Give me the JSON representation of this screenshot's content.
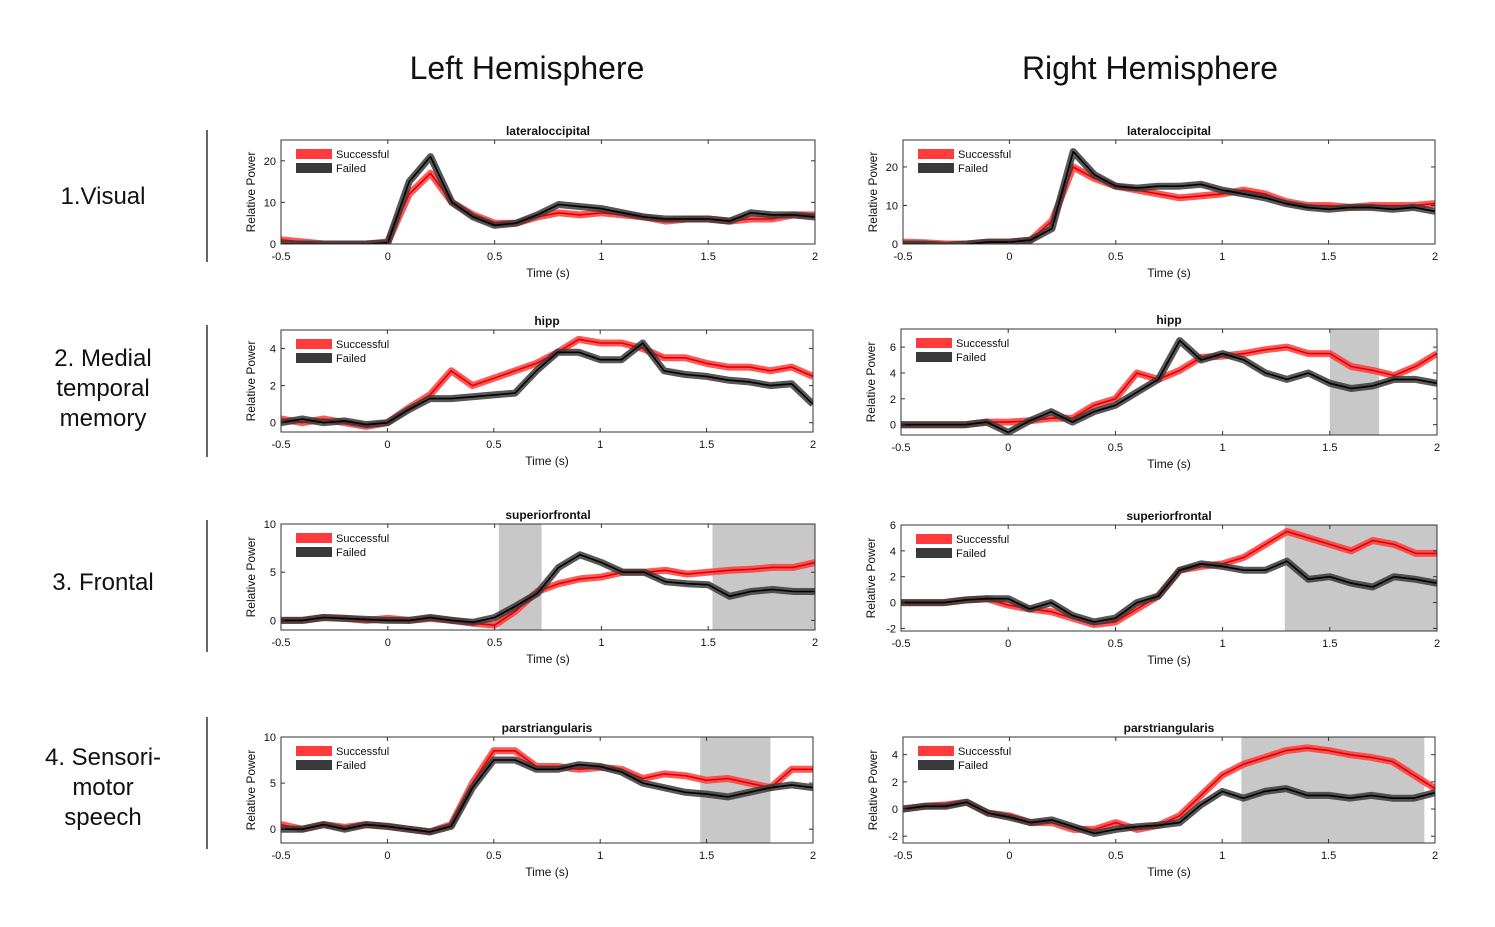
{
  "column_titles": [
    "Left Hemisphere",
    "Right Hemisphere"
  ],
  "row_labels": [
    [
      "1.Visual"
    ],
    [
      "2. Medial",
      "temporal",
      "memory"
    ],
    [
      "3. Frontal"
    ],
    [
      "4. Sensori-",
      "motor",
      "speech"
    ]
  ],
  "colors": {
    "successful": "#ff3b3b",
    "successful_line": "#e00000",
    "failed": "#3a3a3a",
    "failed_line": "#000000",
    "shade": "#c8c8c8"
  },
  "chart_data": [
    {
      "type": "line",
      "hemisphere": "Left Hemisphere",
      "title": "lateraloccipital",
      "xlabel": "Time (s)",
      "ylabel": "Relative Power",
      "xlim": [
        -0.5,
        2
      ],
      "ylim": [
        0,
        25
      ],
      "xticks": [
        -0.5,
        0,
        0.5,
        1,
        1.5,
        2
      ],
      "xtick_labels": [
        "-0.5",
        "0",
        "0.5",
        "1",
        "1.5",
        "2"
      ],
      "yticks": [
        0,
        10,
        20
      ],
      "ytick_labels": [
        "0",
        "10",
        "20"
      ],
      "legend": "top-left",
      "shaded": [],
      "x": [
        -0.5,
        -0.4,
        -0.3,
        -0.2,
        -0.1,
        0,
        0.1,
        0.2,
        0.3,
        0.4,
        0.5,
        0.6,
        0.7,
        0.8,
        0.9,
        1.0,
        1.1,
        1.2,
        1.3,
        1.4,
        1.5,
        1.6,
        1.7,
        1.8,
        1.9,
        2.0
      ],
      "series": [
        {
          "name": "Successful",
          "values": [
            1,
            0.5,
            0,
            0,
            0,
            0.5,
            12,
            17,
            10,
            7,
            5,
            5,
            6.5,
            7.5,
            7,
            7.5,
            7,
            6.5,
            5.5,
            6,
            6,
            5.5,
            6,
            6,
            7,
            7
          ]
        },
        {
          "name": "Failed",
          "values": [
            0,
            0,
            0,
            0,
            0,
            0.3,
            15,
            21,
            10,
            6.5,
            4.5,
            5,
            7,
            9.5,
            9,
            8.5,
            7.5,
            6.5,
            6,
            6,
            6,
            5.5,
            7.5,
            7,
            7,
            6.5
          ]
        }
      ]
    },
    {
      "type": "line",
      "hemisphere": "Right Hemisphere",
      "title": "lateraloccipital",
      "xlabel": "Time (s)",
      "ylabel": "Relative Power",
      "xlim": [
        -0.5,
        2
      ],
      "ylim": [
        0,
        27
      ],
      "xticks": [
        -0.5,
        0,
        0.5,
        1,
        1.5,
        2
      ],
      "xtick_labels": [
        "-0.5",
        "0",
        "0.5",
        "1",
        "1.5",
        "2"
      ],
      "yticks": [
        0,
        10,
        20
      ],
      "ytick_labels": [
        "0",
        "10",
        "20"
      ],
      "legend": "top-left",
      "shaded": [],
      "x": [
        -0.5,
        -0.4,
        -0.3,
        -0.2,
        -0.1,
        0,
        0.1,
        0.2,
        0.3,
        0.4,
        0.5,
        0.6,
        0.7,
        0.8,
        0.9,
        1.0,
        1.1,
        1.2,
        1.3,
        1.4,
        1.5,
        1.6,
        1.7,
        1.8,
        1.9,
        2.0
      ],
      "series": [
        {
          "name": "Successful",
          "values": [
            0.5,
            0.3,
            0,
            0,
            0.5,
            0.5,
            1,
            6,
            20,
            17,
            15,
            14,
            13,
            12,
            12.5,
            13,
            14,
            13,
            11,
            10,
            10,
            9.5,
            10,
            10,
            10,
            10.5
          ]
        },
        {
          "name": "Failed",
          "values": [
            0,
            0,
            -0.3,
            0,
            0.5,
            0.5,
            1,
            4,
            24,
            18,
            15,
            14.5,
            15,
            15,
            15.5,
            14,
            13,
            12,
            10.5,
            9.5,
            9,
            9.5,
            9.5,
            9,
            9.5,
            8.5
          ]
        }
      ]
    },
    {
      "type": "line",
      "hemisphere": "Left Hemisphere",
      "title": "hipp",
      "xlabel": "Time (s)",
      "ylabel": "Relative Power",
      "xlim": [
        -0.5,
        2
      ],
      "ylim": [
        -0.5,
        5
      ],
      "xticks": [
        -0.5,
        0,
        0.5,
        1,
        1.5,
        2
      ],
      "xtick_labels": [
        "-0.5",
        "0",
        "0.5",
        "1",
        "1.5",
        "2"
      ],
      "yticks": [
        0,
        2,
        4
      ],
      "ytick_labels": [
        "0",
        "2",
        "4"
      ],
      "legend": "top-left",
      "shaded": [],
      "x": [
        -0.5,
        -0.4,
        -0.3,
        -0.2,
        -0.1,
        0,
        0.1,
        0.2,
        0.3,
        0.4,
        0.5,
        0.6,
        0.7,
        0.8,
        0.9,
        1.0,
        1.1,
        1.2,
        1.3,
        1.4,
        1.5,
        1.6,
        1.7,
        1.8,
        1.9,
        2.0
      ],
      "series": [
        {
          "name": "Successful",
          "values": [
            0.2,
            0,
            0.2,
            0,
            -0.2,
            0,
            0.8,
            1.5,
            2.8,
            2.0,
            2.4,
            2.8,
            3.2,
            3.8,
            4.5,
            4.3,
            4.3,
            4.0,
            3.5,
            3.5,
            3.2,
            3.0,
            3.0,
            2.8,
            3.0,
            2.5
          ]
        },
        {
          "name": "Failed",
          "values": [
            0,
            0.2,
            0,
            0.1,
            -0.1,
            0,
            0.7,
            1.3,
            1.3,
            1.4,
            1.5,
            1.6,
            2.8,
            3.8,
            3.8,
            3.4,
            3.4,
            4.3,
            2.8,
            2.6,
            2.5,
            2.3,
            2.2,
            2.0,
            2.1,
            1.0
          ]
        }
      ]
    },
    {
      "type": "line",
      "hemisphere": "Right Hemisphere",
      "title": "hipp",
      "xlabel": "Time (s)",
      "ylabel": "Relative Power",
      "xlim": [
        -0.5,
        2
      ],
      "ylim": [
        -0.8,
        7.4
      ],
      "xticks": [
        -0.5,
        0,
        0.5,
        1,
        1.5,
        2
      ],
      "xtick_labels": [
        "-0.5",
        "0",
        "0.5",
        "1",
        "1.5",
        "2"
      ],
      "yticks": [
        0,
        2,
        4,
        6
      ],
      "ytick_labels": [
        "0",
        "2",
        "4",
        "6"
      ],
      "legend": "top-left",
      "shaded": [
        [
          1.5,
          1.73
        ]
      ],
      "x": [
        -0.5,
        -0.4,
        -0.3,
        -0.2,
        -0.1,
        0,
        0.1,
        0.2,
        0.3,
        0.4,
        0.5,
        0.6,
        0.7,
        0.8,
        0.9,
        1.0,
        1.1,
        1.2,
        1.3,
        1.4,
        1.5,
        1.6,
        1.7,
        1.8,
        1.9,
        2.0
      ],
      "series": [
        {
          "name": "Successful",
          "values": [
            0,
            0,
            0,
            0,
            0.2,
            0.2,
            0.3,
            0.5,
            0.5,
            1.5,
            2,
            4,
            3.5,
            4.2,
            5.2,
            5.3,
            5.5,
            5.8,
            6,
            5.5,
            5.5,
            4.5,
            4.2,
            3.8,
            4.5,
            5.5
          ]
        },
        {
          "name": "Failed",
          "values": [
            0,
            0,
            0,
            0,
            0.2,
            -0.6,
            0.3,
            1,
            0.2,
            1,
            1.5,
            2.5,
            3.5,
            6.5,
            5,
            5.5,
            5,
            4,
            3.5,
            4,
            3.2,
            2.8,
            3,
            3.5,
            3.5,
            3.2
          ]
        }
      ]
    },
    {
      "type": "line",
      "hemisphere": "Left Hemisphere",
      "title": "superiorfrontal",
      "xlabel": "Time (s)",
      "ylabel": "Relative Power",
      "xlim": [
        -0.5,
        2
      ],
      "ylim": [
        -1,
        10
      ],
      "xticks": [
        -0.5,
        0,
        0.5,
        1,
        1.5,
        2
      ],
      "xtick_labels": [
        "-0.5",
        "0",
        "0.5",
        "1",
        "1.5",
        "2"
      ],
      "yticks": [
        0,
        5,
        10
      ],
      "ytick_labels": [
        "0",
        "5",
        "10"
      ],
      "legend": "top-left",
      "shaded": [
        [
          0.52,
          0.72
        ],
        [
          1.52,
          2
        ]
      ],
      "x": [
        -0.5,
        -0.4,
        -0.3,
        -0.2,
        -0.1,
        0,
        0.1,
        0.2,
        0.3,
        0.4,
        0.5,
        0.6,
        0.7,
        0.8,
        0.9,
        1.0,
        1.1,
        1.2,
        1.3,
        1.4,
        1.5,
        1.6,
        1.7,
        1.8,
        1.9,
        2.0
      ],
      "series": [
        {
          "name": "Successful",
          "values": [
            0,
            0,
            0.3,
            0.2,
            0,
            0.2,
            0,
            0.2,
            0,
            -0.3,
            -0.5,
            1.0,
            3.0,
            3.8,
            4.3,
            4.5,
            5.0,
            5.0,
            5.2,
            4.8,
            5.0,
            5.2,
            5.3,
            5.5,
            5.5,
            6.0
          ]
        },
        {
          "name": "Failed",
          "values": [
            0,
            0,
            0.3,
            0.2,
            0.1,
            0,
            0,
            0.3,
            0,
            -0.2,
            0.3,
            1.5,
            2.8,
            5.5,
            6.8,
            6.0,
            5.0,
            5.0,
            4.0,
            3.8,
            3.7,
            2.5,
            3.0,
            3.2,
            3.0,
            3.0
          ]
        }
      ]
    },
    {
      "type": "line",
      "hemisphere": "Right Hemisphere",
      "title": "superiorfrontal",
      "xlabel": "Time (s)",
      "ylabel": "Relative Power",
      "xlim": [
        -0.5,
        2
      ],
      "ylim": [
        -2.2,
        6
      ],
      "xticks": [
        -0.5,
        0,
        0.5,
        1,
        1.5,
        2
      ],
      "xtick_labels": [
        "-0.5",
        "0",
        "0.5",
        "1",
        "1.5",
        "2"
      ],
      "yticks": [
        -2,
        0,
        2,
        4,
        6
      ],
      "ytick_labels": [
        "-2",
        "0",
        "2",
        "4",
        "6"
      ],
      "legend": "top-left",
      "shaded": [
        [
          1.29,
          2
        ]
      ],
      "x": [
        -0.5,
        -0.4,
        -0.3,
        -0.2,
        -0.1,
        0,
        0.1,
        0.2,
        0.3,
        0.4,
        0.5,
        0.6,
        0.7,
        0.8,
        0.9,
        1.0,
        1.1,
        1.2,
        1.3,
        1.4,
        1.5,
        1.6,
        1.7,
        1.8,
        1.9,
        2.0
      ],
      "series": [
        {
          "name": "Successful",
          "values": [
            0,
            0,
            0,
            0.2,
            0.3,
            -0.2,
            -0.5,
            -0.7,
            -1.2,
            -1.7,
            -1.5,
            -0.5,
            0.5,
            2.5,
            2.8,
            3,
            3.5,
            4.5,
            5.5,
            5,
            4.5,
            4,
            4.8,
            4.5,
            3.8,
            3.8
          ]
        },
        {
          "name": "Failed",
          "values": [
            0,
            0,
            0,
            0.2,
            0.3,
            0.3,
            -0.5,
            0,
            -1,
            -1.5,
            -1.2,
            0,
            0.5,
            2.5,
            3,
            2.8,
            2.5,
            2.5,
            3.2,
            1.8,
            2,
            1.5,
            1.2,
            2,
            1.8,
            1.5
          ]
        }
      ]
    },
    {
      "type": "line",
      "hemisphere": "Left Hemisphere",
      "title": "parstriangularis",
      "xlabel": "Time (s)",
      "ylabel": "Relative Power",
      "xlim": [
        -0.5,
        2
      ],
      "ylim": [
        -1.5,
        10
      ],
      "xticks": [
        -0.5,
        0,
        0.5,
        1,
        1.5,
        2
      ],
      "xtick_labels": [
        "-0.5",
        "0",
        "0.5",
        "1",
        "1.5",
        "2"
      ],
      "yticks": [
        0,
        5,
        10
      ],
      "ytick_labels": [
        "0",
        "5",
        "10"
      ],
      "legend": "top-left",
      "shaded": [
        [
          1.47,
          1.8
        ]
      ],
      "x": [
        -0.5,
        -0.4,
        -0.3,
        -0.2,
        -0.1,
        0,
        0.1,
        0.2,
        0.3,
        0.4,
        0.5,
        0.6,
        0.7,
        0.8,
        0.9,
        1.0,
        1.1,
        1.2,
        1.3,
        1.4,
        1.5,
        1.6,
        1.7,
        1.8,
        1.9,
        2.0
      ],
      "series": [
        {
          "name": "Successful",
          "values": [
            0.5,
            0,
            0.5,
            0.2,
            0.5,
            0.3,
            0,
            -0.3,
            0.5,
            5,
            8.5,
            8.5,
            6.8,
            6.8,
            6.5,
            6.7,
            6.5,
            5.5,
            6,
            5.8,
            5.3,
            5.5,
            5,
            4.5,
            6.5,
            6.5
          ]
        },
        {
          "name": "Failed",
          "values": [
            0,
            0,
            0.5,
            0,
            0.5,
            0.3,
            0,
            -0.3,
            0.3,
            4.5,
            7.5,
            7.5,
            6.5,
            6.5,
            7,
            6.8,
            6.2,
            5,
            4.5,
            4,
            3.8,
            3.5,
            4,
            4.5,
            4.8,
            4.5
          ]
        }
      ]
    },
    {
      "type": "line",
      "hemisphere": "Right Hemisphere",
      "title": "parstriangularis",
      "xlabel": "Time (s)",
      "ylabel": "Relative Power",
      "xlim": [
        -0.5,
        2
      ],
      "ylim": [
        -2.5,
        5.3
      ],
      "xticks": [
        -0.5,
        0,
        0.5,
        1,
        1.5,
        2
      ],
      "xtick_labels": [
        "-0.5",
        "0",
        "0.5",
        "1",
        "1.5",
        "2"
      ],
      "yticks": [
        -2,
        0,
        2,
        4
      ],
      "ytick_labels": [
        "-2",
        "0",
        "2",
        "4"
      ],
      "legend": "top-left",
      "shaded": [
        [
          1.09,
          1.95
        ]
      ],
      "x": [
        -0.5,
        -0.4,
        -0.3,
        -0.2,
        -0.1,
        0,
        0.1,
        0.2,
        0.3,
        0.4,
        0.5,
        0.6,
        0.7,
        0.8,
        0.9,
        1.0,
        1.1,
        1.2,
        1.3,
        1.4,
        1.5,
        1.6,
        1.7,
        1.8,
        1.9,
        2.0
      ],
      "series": [
        {
          "name": "Successful",
          "values": [
            0,
            0.2,
            0.3,
            0.5,
            -0.3,
            -0.5,
            -1,
            -1,
            -1.5,
            -1.5,
            -1,
            -1.5,
            -1.2,
            -0.5,
            1,
            2.5,
            3.3,
            3.8,
            4.3,
            4.5,
            4.3,
            4,
            3.8,
            3.5,
            2.5,
            1.5
          ]
        },
        {
          "name": "Failed",
          "values": [
            0,
            0.2,
            0.2,
            0.5,
            -0.3,
            -0.6,
            -1,
            -0.8,
            -1.3,
            -1.8,
            -1.5,
            -1.3,
            -1.2,
            -1,
            0.3,
            1.3,
            0.8,
            1.3,
            1.5,
            1,
            1.0,
            0.8,
            1,
            0.8,
            0.8,
            1.2
          ]
        }
      ]
    }
  ]
}
